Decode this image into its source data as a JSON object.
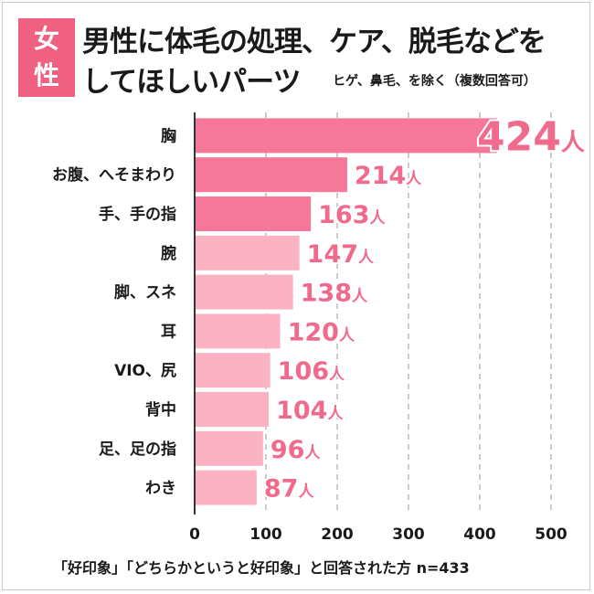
{
  "badge": {
    "line1": "女",
    "line2": "性"
  },
  "header": {
    "title_line1": "男性に体毛の処理、ケア、脱毛などを",
    "title_line2": "してほしいパーツ",
    "subtitle": "ヒゲ、鼻毛、を除く（複数回答可）"
  },
  "footnote": "「好印象」「どちらかというと好印象」と回答された方 n=433",
  "colors": {
    "bar_dark": "#f5789a",
    "bar_light": "#fbb3c3",
    "label": "#f06a8c",
    "badge": "#f06080"
  },
  "chart_data": {
    "type": "bar",
    "orientation": "horizontal",
    "title": "男性に体毛の処理、ケア、脱毛などをしてほしいパーツ",
    "categories": [
      "胸",
      "お腹、へそまわり",
      "手、手の指",
      "腕",
      "脚、スネ",
      "耳",
      "VIO、尻",
      "背中",
      "足、足の指",
      "わき"
    ],
    "values": [
      424,
      214,
      163,
      147,
      138,
      120,
      106,
      104,
      96,
      87
    ],
    "unit": "人",
    "highlight_top": 3,
    "xlim": [
      0,
      500
    ],
    "xticks": [
      0,
      100,
      200,
      300,
      400,
      500
    ],
    "grid": true,
    "grid_style": "dashed"
  }
}
